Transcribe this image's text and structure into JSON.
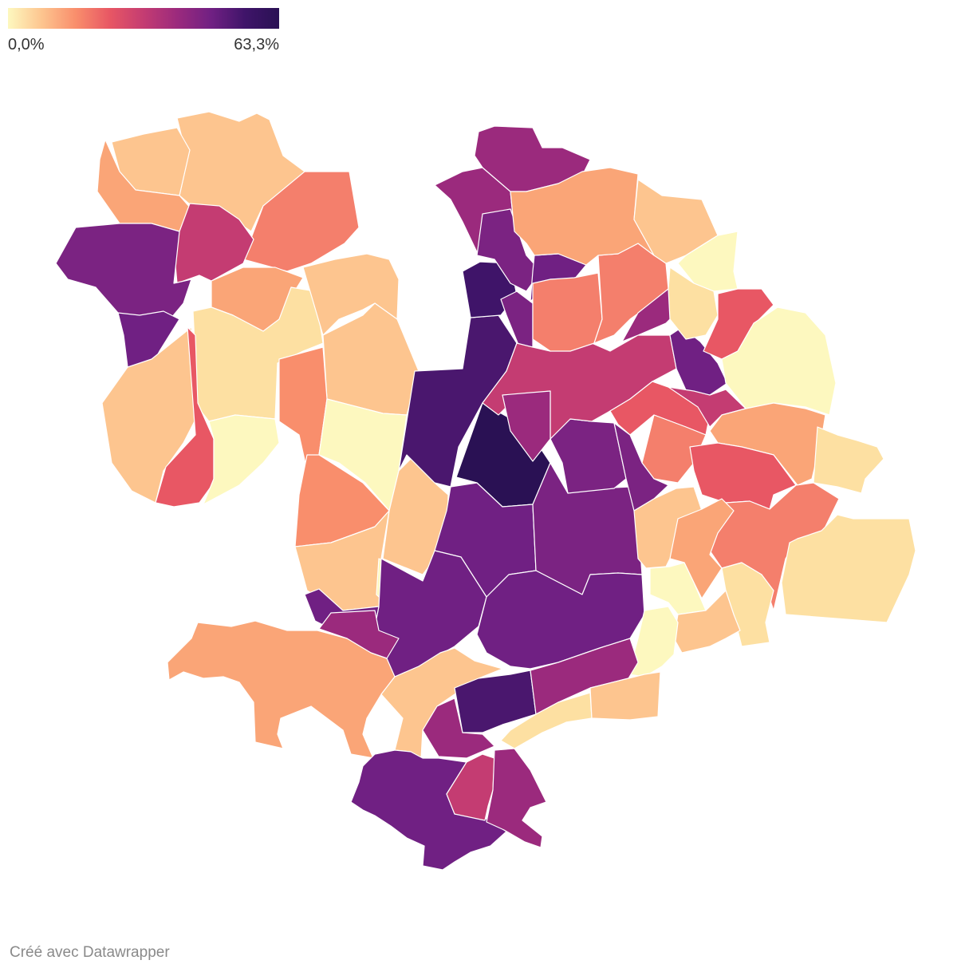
{
  "legend": {
    "min_label": "0,0%",
    "max_label": "63,3%",
    "min_value": 0.0,
    "max_value": 63.3,
    "gradient_colors": [
      "#fdf8bf",
      "#fdc58f",
      "#f98e6c",
      "#e85764",
      "#c43c72",
      "#9b2a7d",
      "#702083",
      "#3f1469",
      "#2a1154"
    ]
  },
  "credit": "Créé avec Datawrapper"
}
